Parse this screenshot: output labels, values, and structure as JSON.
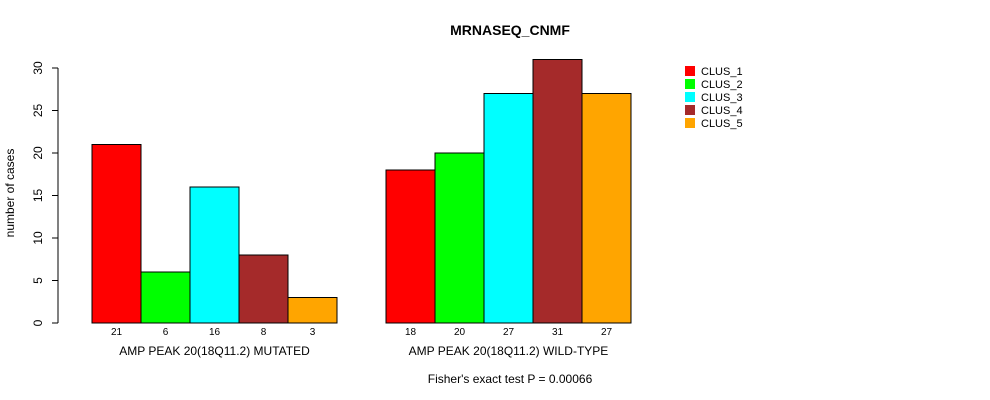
{
  "chart_data": {
    "type": "bar",
    "title": "MRNASEQ_CNMF",
    "ylabel": "number of cases",
    "ylim": [
      0,
      30
    ],
    "yticks": [
      0,
      5,
      10,
      15,
      20,
      25,
      30
    ],
    "groups": [
      {
        "label": "AMP PEAK 20(18Q11.2) MUTATED",
        "values": [
          21,
          6,
          16,
          8,
          3
        ]
      },
      {
        "label": "AMP PEAK 20(18Q11.2) WILD-TYPE",
        "values": [
          18,
          20,
          27,
          31,
          27
        ]
      }
    ],
    "series": [
      {
        "name": "CLUS_1",
        "color": "#ff0000"
      },
      {
        "name": "CLUS_2",
        "color": "#00ff00"
      },
      {
        "name": "CLUS_3",
        "color": "#00ffff"
      },
      {
        "name": "CLUS_4",
        "color": "#a52a2a"
      },
      {
        "name": "CLUS_5",
        "color": "#ffa500"
      }
    ],
    "footnote": "Fisher's exact test P = 0.00066",
    "legend_position": "top-right"
  }
}
